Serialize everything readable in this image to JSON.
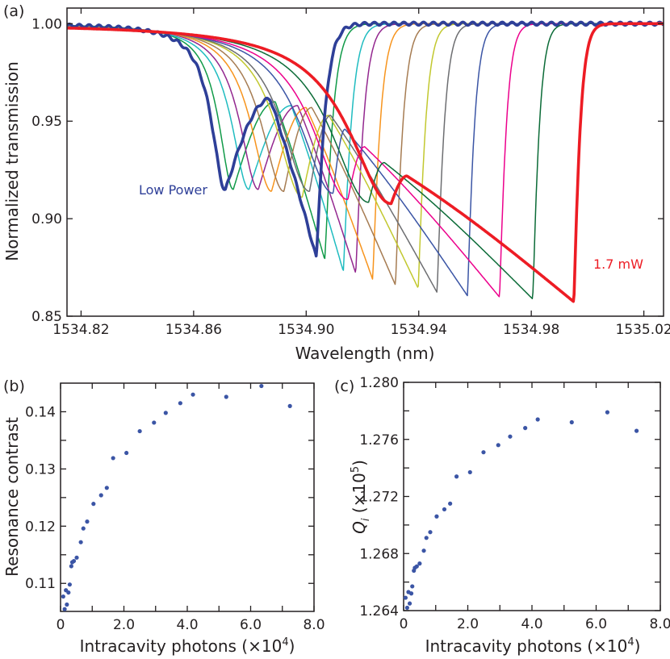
{
  "chart_data": [
    {
      "panel_label": "(a)",
      "type": "line",
      "xlabel": "Wavelength (nm)",
      "ylabel": "Normalized transmission",
      "xlim": [
        1534.815,
        1535.027
      ],
      "ylim": [
        0.85,
        1.008
      ],
      "xticks": [
        1534.82,
        1534.86,
        1534.9,
        1534.94,
        1534.98,
        1535.02
      ],
      "xtick_labels": [
        "1534.82",
        "1534.86",
        "1534.90",
        "1534.94",
        "1534.98",
        "1535.02"
      ],
      "yticks": [
        0.85,
        0.9,
        0.95,
        1.0
      ],
      "ytick_labels": [
        "0.85",
        "0.90",
        "0.95",
        "1.00"
      ],
      "annotations": [
        {
          "text": "Low Power",
          "color": "#2e3f98"
        },
        {
          "text": "1.7 mW",
          "color": "#ed1c24"
        }
      ],
      "series": [
        {
          "color": "#2e3f98",
          "thick": true,
          "onset": 1534.855,
          "dip1": [
            1534.8713,
            0.9146
          ],
          "peak": [
            1534.8872,
            0.9614
          ],
          "dip2": [
            1534.9036,
            0.88
          ]
        },
        {
          "color": "#109a48",
          "thick": false,
          "onset": 1534.857,
          "dip1": [
            1534.8741,
            0.915
          ],
          "peak": [
            1534.889,
            0.96
          ],
          "dip2": [
            1534.9066,
            0.879
          ]
        },
        {
          "color": "#1fbcc0",
          "thick": false,
          "onset": 1534.859,
          "dip1": [
            1534.8797,
            0.915
          ],
          "peak": [
            1534.8947,
            0.958
          ],
          "dip2": [
            1534.9132,
            0.873
          ]
        },
        {
          "color": "#93278f",
          "thick": false,
          "onset": 1534.861,
          "dip1": [
            1534.883,
            0.915
          ],
          "peak": [
            1534.897,
            0.958
          ],
          "dip2": [
            1534.9176,
            0.872
          ]
        },
        {
          "color": "#f7941d",
          "thick": false,
          "onset": 1534.863,
          "dip1": [
            1534.8877,
            0.914
          ],
          "peak": [
            1534.9,
            0.957
          ],
          "dip2": [
            1534.9236,
            0.869
          ]
        },
        {
          "color": "#a67c52",
          "thick": false,
          "onset": 1534.865,
          "dip1": [
            1534.8921,
            0.914
          ],
          "peak": [
            1534.902,
            0.957
          ],
          "dip2": [
            1534.9317,
            0.866
          ]
        },
        {
          "color": "#c2c82f",
          "thick": false,
          "onset": 1534.867,
          "dip1": [
            1534.8986,
            0.911
          ],
          "peak": [
            1534.908,
            0.953
          ],
          "dip2": [
            1534.9398,
            0.8643
          ]
        },
        {
          "color": "#6d6e71",
          "thick": false,
          "onset": 1534.868,
          "dip1": [
            1534.9012,
            0.914
          ],
          "peak": [
            1534.9087,
            0.953
          ],
          "dip2": [
            1534.9465,
            0.8622
          ]
        },
        {
          "color": "#3b55a5",
          "thick": false,
          "onset": 1534.87,
          "dip1": [
            1534.9096,
            0.913
          ],
          "peak": [
            1534.9138,
            0.9459
          ],
          "dip2": [
            1534.9573,
            0.8605
          ]
        },
        {
          "color": "#ec008c",
          "thick": false,
          "onset": 1534.872,
          "dip1": [
            1534.9148,
            0.9098
          ],
          "peak": [
            1534.9208,
            0.9369
          ],
          "dip2": [
            1534.9687,
            0.8598
          ]
        },
        {
          "color": "#0b6b37",
          "thick": false,
          "onset": 1534.875,
          "dip1": [
            1534.9222,
            0.9084
          ],
          "peak": [
            1534.9278,
            0.9288
          ],
          "dip2": [
            1534.9805,
            0.8588
          ]
        },
        {
          "color": "#ed1c24",
          "thick": true,
          "onset": 1534.878,
          "dip1": [
            1534.9302,
            0.9077
          ],
          "peak": [
            1534.9358,
            0.9219
          ],
          "dip2": [
            1534.9951,
            0.8574
          ]
        }
      ]
    },
    {
      "panel_label": "(b)",
      "type": "scatter",
      "xlabel": "Intracavity photons (×10",
      "xlabel_exp": "4",
      "xlabel_end": ")",
      "ylabel": "Resonance contrast",
      "xlim": [
        0,
        8
      ],
      "ylim": [
        0.1051,
        0.145
      ],
      "xtick_labels": [
        "0",
        "2.0",
        "4.0",
        "6.0",
        "8.0"
      ],
      "xticks": [
        0,
        2,
        4,
        6,
        8
      ],
      "yticks": [
        0.11,
        0.12,
        0.13,
        0.14
      ],
      "ytick_labels": [
        "0.11",
        "0.12",
        "0.13",
        "0.14"
      ],
      "color": "#3b55a5",
      "x": [
        0.085,
        0.13,
        0.17,
        0.2,
        0.25,
        0.29,
        0.34,
        0.37,
        0.42,
        0.51,
        0.64,
        0.72,
        0.84,
        1.04,
        1.28,
        1.46,
        1.66,
        2.08,
        2.5,
        2.95,
        3.32,
        3.78,
        4.18,
        5.23,
        6.34,
        7.24
      ],
      "y": [
        0.1077,
        0.1055,
        0.1088,
        0.1063,
        0.1084,
        0.1098,
        0.113,
        0.1137,
        0.1139,
        0.1145,
        0.1172,
        0.1196,
        0.1208,
        0.1239,
        0.1254,
        0.1267,
        0.1319,
        0.1328,
        0.1366,
        0.1381,
        0.1398,
        0.1415,
        0.143,
        0.1426,
        0.1445,
        0.141
      ]
    },
    {
      "panel_label": "(c)",
      "type": "scatter",
      "xlabel": "Intracavity photons (×10",
      "xlabel_exp": "4",
      "xlabel_end": ")",
      "ylabel": "Q",
      "ylabel_sub": "i",
      "ylabel_unit": " (×10",
      "ylabel_exp": "5",
      "ylabel_end": ")",
      "xlim": [
        0,
        8
      ],
      "ylim": [
        1.264,
        1.28
      ],
      "xticks": [
        0,
        2,
        4,
        6,
        8
      ],
      "xtick_labels": [
        "0",
        "2.0",
        "4.0",
        "6.0",
        "8.0"
      ],
      "yticks": [
        1.264,
        1.268,
        1.272,
        1.276,
        1.28
      ],
      "ytick_labels": [
        "1.264",
        "1.268",
        "1.272",
        "1.276",
        "1.280"
      ],
      "color": "#3b55a5",
      "x": [
        0.06,
        0.11,
        0.15,
        0.19,
        0.24,
        0.27,
        0.32,
        0.35,
        0.41,
        0.5,
        0.63,
        0.71,
        0.83,
        1.03,
        1.27,
        1.45,
        1.65,
        2.07,
        2.49,
        2.95,
        3.32,
        3.79,
        4.18,
        5.24,
        6.35,
        7.26
      ],
      "y": [
        1.2649,
        1.2642,
        1.2653,
        1.2645,
        1.2652,
        1.2657,
        1.2668,
        1.267,
        1.2671,
        1.2673,
        1.2682,
        1.2691,
        1.2695,
        1.2706,
        1.2711,
        1.2715,
        1.2734,
        1.2737,
        1.2751,
        1.2756,
        1.2762,
        1.2768,
        1.2774,
        1.2772,
        1.2779,
        1.2766
      ]
    }
  ]
}
